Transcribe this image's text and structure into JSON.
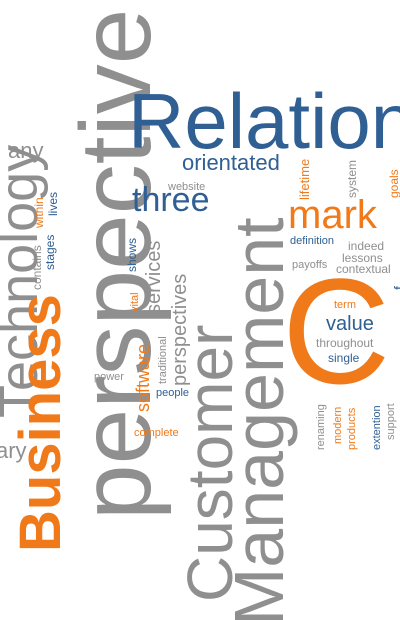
{
  "colors": {
    "gray": "#8f8f8f",
    "light_gray": "#a9a9a9",
    "blue": "#2f5f93",
    "orange": "#f07a1a"
  },
  "words": {
    "perspective_big": "perspective",
    "relation": "Relation",
    "technology": "Technology",
    "business": "Business",
    "customer": "Customer",
    "management": "Management",
    "marketing": "mark",
    "crm_c": "C",
    "any_top": "any",
    "any_bottom": "ary",
    "orientated": "orientated",
    "three": "three",
    "website": "website",
    "lifetime": "lifetime",
    "system": "system",
    "goals": "goals",
    "within": "within",
    "lives": "lives",
    "contains": "contains",
    "stages": "stages",
    "shows": "shows",
    "vital": "vital",
    "services": "services",
    "perspectives": "perspectives",
    "traditional": "traditional",
    "software": "software",
    "people": "people",
    "power": "power",
    "complete": "complete",
    "definition": "definition",
    "indeed": "indeed",
    "lessons": "lessons",
    "payoffs": "payoffs",
    "contextual": "contextual",
    "term": "term",
    "value": "value",
    "throughout": "throughout",
    "single": "single",
    "renaming": "renaming",
    "modern": "modern",
    "products": "products",
    "extention": "extention",
    "support": "support",
    "f_cut": "f"
  }
}
